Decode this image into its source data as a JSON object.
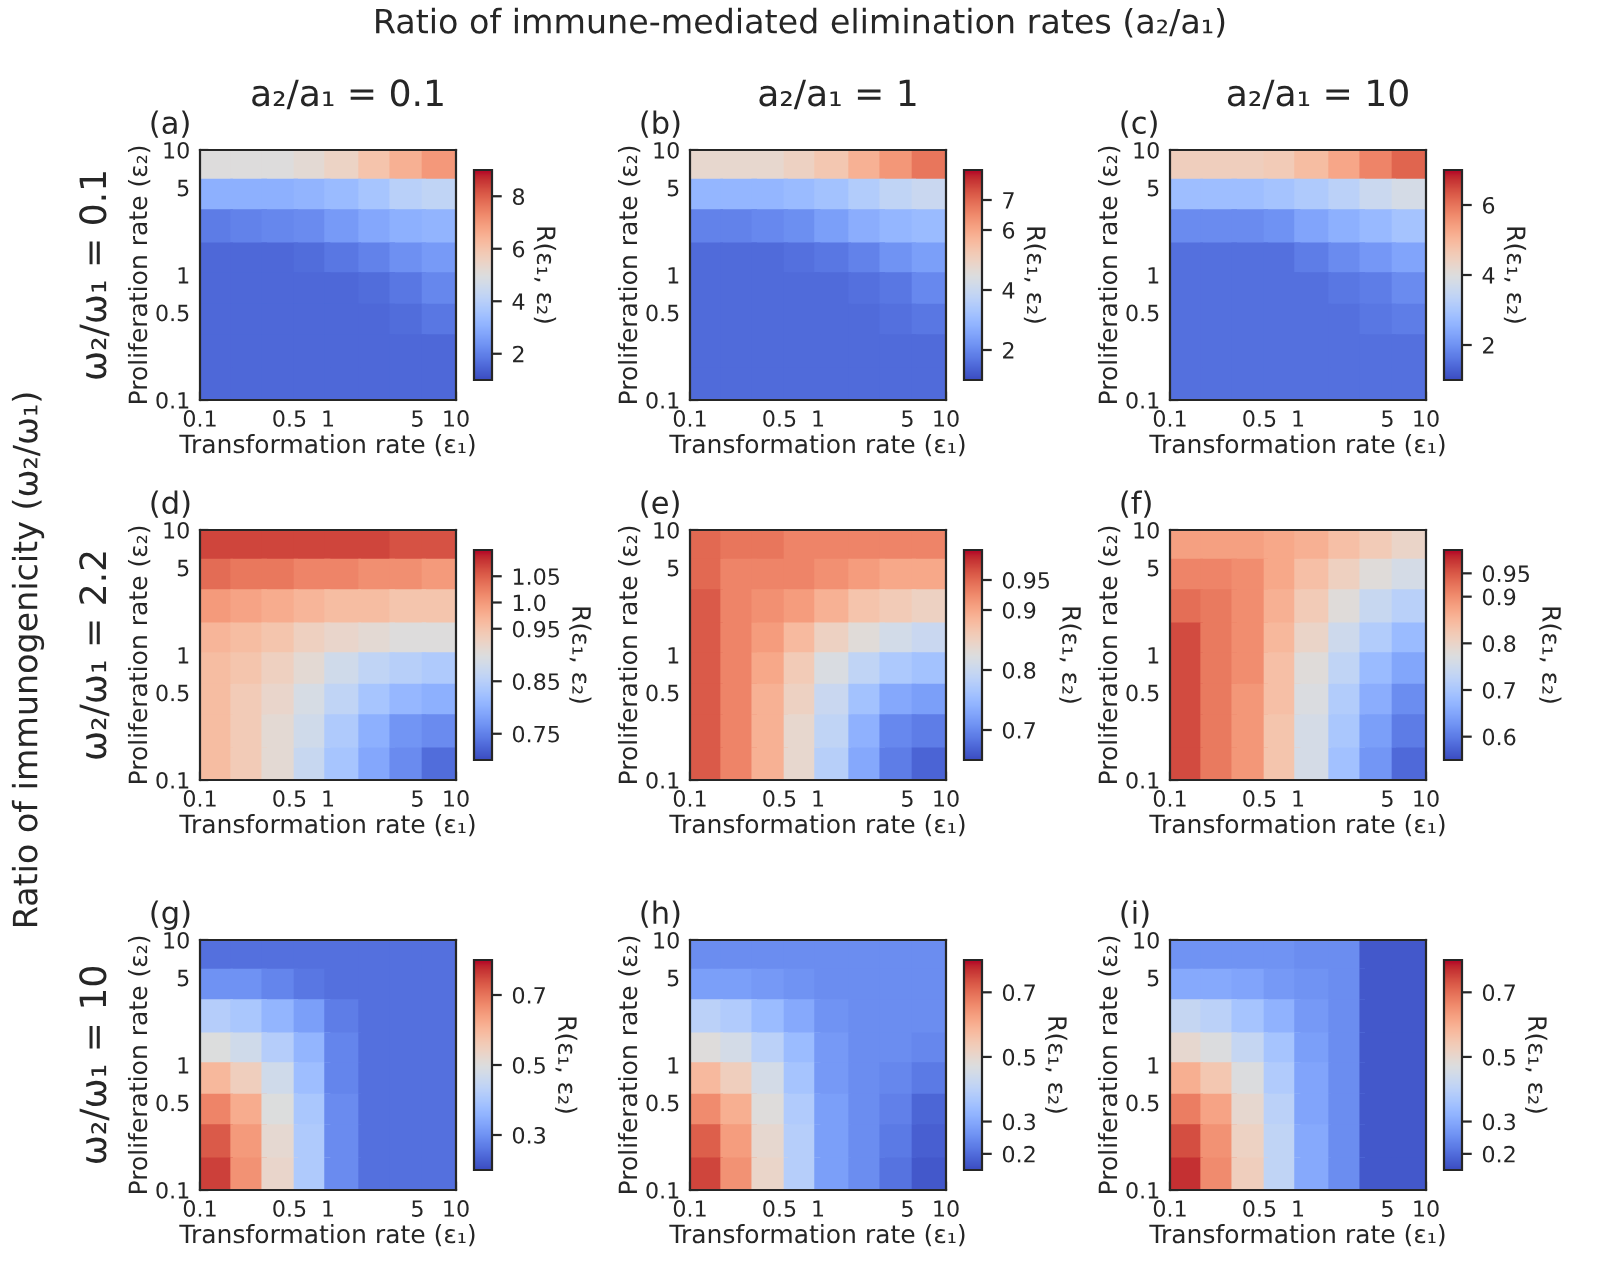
{
  "chart_data": [
    {
      "type": "scatter",
      "marker": "square",
      "title": "(a)",
      "subtitle": "a₂/a₁ = 0.1",
      "annotations": [
        "Ratio of immune-mediated elimination rates (a₂/a₁)",
        "Ratio of immunogenicity (ω₂/ω₁)",
        "ω₂/ω₁ = 0.1"
      ],
      "xlabel": "Transformation rate (ε₁)",
      "ylabel": "Proliferation rate (ε₂)",
      "clabel": "R(ε₁, ε₂)",
      "log": "xy",
      "xlim": [
        0.1,
        10
      ],
      "ylim": [
        0.1,
        10
      ],
      "xticks": [
        0.1,
        0.5,
        1,
        5,
        10
      ],
      "yticks": [
        0.1,
        0.5,
        1,
        5,
        10
      ],
      "clim": [
        1,
        9
      ],
      "cticks": [
        2,
        4,
        6,
        8
      ],
      "x": [
        0.13,
        0.24,
        0.42,
        0.75,
        1.3,
        2.4,
        4.2,
        7.5,
        0.13,
        0.24,
        0.42,
        0.75,
        1.3,
        2.4,
        4.2,
        7.5,
        0.13,
        0.24,
        0.42,
        0.75,
        1.3,
        2.4,
        4.2,
        7.5,
        0.13,
        0.24,
        0.42,
        0.75,
        1.3,
        2.4,
        4.2,
        7.5,
        0.13,
        0.24,
        0.42,
        0.75,
        1.3,
        2.4,
        4.2,
        7.5,
        0.13,
        0.24,
        0.42,
        0.75,
        1.3,
        2.4,
        4.2,
        7.5,
        0.13,
        0.24,
        0.42,
        0.75,
        1.3,
        2.4,
        4.2,
        7.5,
        0.13,
        0.24,
        0.42,
        0.75,
        1.3,
        2.4,
        4.2,
        7.5
      ],
      "values": [
        7.5,
        7.5,
        7.5,
        7.5,
        7.5,
        7.5,
        7.5,
        7.5,
        4.2,
        4.2,
        4.2,
        4.2,
        4.2,
        4.2,
        4.2,
        4.2,
        2.4,
        2.4,
        2.4,
        2.4,
        2.4,
        2.4,
        2.4,
        2.4,
        1.3,
        1.3,
        1.3,
        1.3,
        1.3,
        1.3,
        1.3,
        1.3,
        0.75,
        0.75,
        0.75,
        0.75,
        0.75,
        0.75,
        0.75,
        0.75,
        0.42,
        0.42,
        0.42,
        0.42,
        0.42,
        0.42,
        0.42,
        0.42,
        0.24,
        0.24,
        0.24,
        0.24,
        0.24,
        0.24,
        0.24,
        0.24,
        0.13,
        0.13,
        0.13,
        0.13,
        0.13,
        0.13,
        0.13,
        0.13
      ],
      "cvalues": [
        5,
        5,
        5,
        5.2,
        5.5,
        6,
        6.5,
        7,
        3,
        3,
        3,
        3.1,
        3.3,
        3.6,
        4,
        4.2,
        1.9,
        2,
        2.1,
        2.2,
        2.5,
        2.8,
        3,
        3.1,
        1.5,
        1.5,
        1.5,
        1.6,
        1.8,
        2,
        2.3,
        2.5,
        1.5,
        1.5,
        1.5,
        1.5,
        1.5,
        1.6,
        1.8,
        2.1,
        1.5,
        1.5,
        1.5,
        1.5,
        1.5,
        1.5,
        1.6,
        1.8,
        1.5,
        1.5,
        1.5,
        1.5,
        1.5,
        1.5,
        1.5,
        1.5,
        1.5,
        1.5,
        1.5,
        1.5,
        1.5,
        1.5,
        1.5,
        1.5
      ]
    },
    {
      "type": "scatter",
      "marker": "square",
      "title": "(b)",
      "subtitle": "a₂/a₁ = 1",
      "xlabel": "Transformation rate (ε₁)",
      "ylabel": "Proliferation rate (ε₂)",
      "clabel": "R(ε₁, ε₂)",
      "log": "xy",
      "xlim": [
        0.1,
        10
      ],
      "ylim": [
        0.1,
        10
      ],
      "xticks": [
        0.1,
        0.5,
        1,
        5,
        10
      ],
      "yticks": [
        0.1,
        0.5,
        1,
        5,
        10
      ],
      "clim": [
        1,
        8
      ],
      "cticks": [
        2,
        4,
        6,
        7
      ],
      "x": [
        0.13,
        0.24,
        0.42,
        0.75,
        1.3,
        2.4,
        4.2,
        7.5,
        0.13,
        0.24,
        0.42,
        0.75,
        1.3,
        2.4,
        4.2,
        7.5,
        0.13,
        0.24,
        0.42,
        0.75,
        1.3,
        2.4,
        4.2,
        7.5,
        0.13,
        0.24,
        0.42,
        0.75,
        1.3,
        2.4,
        4.2,
        7.5,
        0.13,
        0.24,
        0.42,
        0.75,
        1.3,
        2.4,
        4.2,
        7.5,
        0.13,
        0.24,
        0.42,
        0.75,
        1.3,
        2.4,
        4.2,
        7.5,
        0.13,
        0.24,
        0.42,
        0.75,
        1.3,
        2.4,
        4.2,
        7.5,
        0.13,
        0.24,
        0.42,
        0.75,
        1.3,
        2.4,
        4.2,
        7.5
      ],
      "values": [
        7.5,
        7.5,
        7.5,
        7.5,
        7.5,
        7.5,
        7.5,
        7.5,
        4.2,
        4.2,
        4.2,
        4.2,
        4.2,
        4.2,
        4.2,
        4.2,
        2.4,
        2.4,
        2.4,
        2.4,
        2.4,
        2.4,
        2.4,
        2.4,
        1.3,
        1.3,
        1.3,
        1.3,
        1.3,
        1.3,
        1.3,
        1.3,
        0.75,
        0.75,
        0.75,
        0.75,
        0.75,
        0.75,
        0.75,
        0.75,
        0.42,
        0.42,
        0.42,
        0.42,
        0.42,
        0.42,
        0.42,
        0.42,
        0.24,
        0.24,
        0.24,
        0.24,
        0.24,
        0.24,
        0.24,
        0.24,
        0.13,
        0.13,
        0.13,
        0.13,
        0.13,
        0.13,
        0.13,
        0.13
      ],
      "cvalues": [
        4.8,
        4.8,
        4.8,
        5,
        5.3,
        5.8,
        6.3,
        6.8,
        2.9,
        2.9,
        2.9,
        3,
        3.2,
        3.5,
        3.8,
        4,
        1.9,
        1.9,
        2,
        2.1,
        2.4,
        2.7,
        2.9,
        3,
        1.5,
        1.5,
        1.5,
        1.6,
        1.7,
        1.9,
        2.2,
        2.4,
        1.5,
        1.5,
        1.5,
        1.5,
        1.5,
        1.6,
        1.7,
        2,
        1.5,
        1.5,
        1.5,
        1.5,
        1.5,
        1.5,
        1.6,
        1.7,
        1.5,
        1.5,
        1.5,
        1.5,
        1.5,
        1.5,
        1.5,
        1.5,
        1.5,
        1.5,
        1.5,
        1.5,
        1.5,
        1.5,
        1.5,
        1.5
      ]
    },
    {
      "type": "scatter",
      "marker": "square",
      "title": "(c)",
      "subtitle": "a₂/a₁ = 10",
      "xlabel": "Transformation rate (ε₁)",
      "ylabel": "Proliferation rate (ε₂)",
      "clabel": "R(ε₁, ε₂)",
      "log": "xy",
      "xlim": [
        0.1,
        10
      ],
      "ylim": [
        0.1,
        10
      ],
      "xticks": [
        0.1,
        0.5,
        1,
        5,
        10
      ],
      "yticks": [
        0.1,
        0.5,
        1,
        5,
        10
      ],
      "clim": [
        1,
        7
      ],
      "cticks": [
        2,
        4,
        6
      ],
      "x": [
        0.13,
        0.24,
        0.42,
        0.75,
        1.3,
        2.4,
        4.2,
        7.5,
        0.13,
        0.24,
        0.42,
        0.75,
        1.3,
        2.4,
        4.2,
        7.5,
        0.13,
        0.24,
        0.42,
        0.75,
        1.3,
        2.4,
        4.2,
        7.5,
        0.13,
        0.24,
        0.42,
        0.75,
        1.3,
        2.4,
        4.2,
        7.5,
        0.13,
        0.24,
        0.42,
        0.75,
        1.3,
        2.4,
        4.2,
        7.5,
        0.13,
        0.24,
        0.42,
        0.75,
        1.3,
        2.4,
        4.2,
        7.5,
        0.13,
        0.24,
        0.42,
        0.75,
        1.3,
        2.4,
        4.2,
        7.5,
        0.13,
        0.24,
        0.42,
        0.75,
        1.3,
        2.4,
        4.2,
        7.5
      ],
      "values": [
        7.5,
        7.5,
        7.5,
        7.5,
        7.5,
        7.5,
        7.5,
        7.5,
        4.2,
        4.2,
        4.2,
        4.2,
        4.2,
        4.2,
        4.2,
        4.2,
        2.4,
        2.4,
        2.4,
        2.4,
        2.4,
        2.4,
        2.4,
        2.4,
        1.3,
        1.3,
        1.3,
        1.3,
        1.3,
        1.3,
        1.3,
        1.3,
        0.75,
        0.75,
        0.75,
        0.75,
        0.75,
        0.75,
        0.75,
        0.75,
        0.42,
        0.42,
        0.42,
        0.42,
        0.42,
        0.42,
        0.42,
        0.42,
        0.24,
        0.24,
        0.24,
        0.24,
        0.24,
        0.24,
        0.24,
        0.24,
        0.13,
        0.13,
        0.13,
        0.13,
        0.13,
        0.13,
        0.13,
        0.13
      ],
      "cvalues": [
        4.5,
        4.5,
        4.5,
        4.6,
        4.9,
        5.3,
        5.8,
        6.2,
        2.8,
        2.8,
        2.8,
        2.9,
        3.1,
        3.3,
        3.6,
        3.8,
        1.9,
        1.9,
        1.9,
        2,
        2.3,
        2.5,
        2.7,
        2.9,
        1.5,
        1.5,
        1.5,
        1.5,
        1.7,
        1.9,
        2.1,
        2.3,
        1.5,
        1.5,
        1.5,
        1.5,
        1.5,
        1.6,
        1.7,
        1.9,
        1.5,
        1.5,
        1.5,
        1.5,
        1.5,
        1.5,
        1.6,
        1.7,
        1.5,
        1.5,
        1.5,
        1.5,
        1.5,
        1.5,
        1.5,
        1.5,
        1.5,
        1.5,
        1.5,
        1.5,
        1.5,
        1.5,
        1.5,
        1.5
      ]
    },
    {
      "type": "scatter",
      "marker": "square",
      "title": "(d)",
      "annotations": [
        "ω₂/ω₁ = 2.2"
      ],
      "xlabel": "Transformation rate (ε₁)",
      "ylabel": "Proliferation rate (ε₂)",
      "clabel": "R(ε₁, ε₂)",
      "log": "xy",
      "xlim": [
        0.1,
        10
      ],
      "ylim": [
        0.1,
        10
      ],
      "xticks": [
        0.1,
        0.5,
        1,
        5,
        10
      ],
      "yticks": [
        0.1,
        0.5,
        1,
        5,
        10
      ],
      "clim": [
        0.7,
        1.1
      ],
      "cticks": [
        0.75,
        0.85,
        0.95,
        {
          "value": 1.0,
          "label": "1.0"
        },
        1.05
      ],
      "x": [
        0.13,
        0.24,
        0.42,
        0.75,
        1.3,
        2.4,
        4.2,
        7.5,
        0.13,
        0.24,
        0.42,
        0.75,
        1.3,
        2.4,
        4.2,
        7.5,
        0.13,
        0.24,
        0.42,
        0.75,
        1.3,
        2.4,
        4.2,
        7.5,
        0.13,
        0.24,
        0.42,
        0.75,
        1.3,
        2.4,
        4.2,
        7.5,
        0.13,
        0.24,
        0.42,
        0.75,
        1.3,
        2.4,
        4.2,
        7.5,
        0.13,
        0.24,
        0.42,
        0.75,
        1.3,
        2.4,
        4.2,
        7.5,
        0.13,
        0.24,
        0.42,
        0.75,
        1.3,
        2.4,
        4.2,
        7.5,
        0.13,
        0.24,
        0.42,
        0.75,
        1.3,
        2.4,
        4.2,
        7.5
      ],
      "values": [
        7.5,
        7.5,
        7.5,
        7.5,
        7.5,
        7.5,
        7.5,
        7.5,
        4.2,
        4.2,
        4.2,
        4.2,
        4.2,
        4.2,
        4.2,
        4.2,
        2.4,
        2.4,
        2.4,
        2.4,
        2.4,
        2.4,
        2.4,
        2.4,
        1.3,
        1.3,
        1.3,
        1.3,
        1.3,
        1.3,
        1.3,
        1.3,
        0.75,
        0.75,
        0.75,
        0.75,
        0.75,
        0.75,
        0.75,
        0.75,
        0.42,
        0.42,
        0.42,
        0.42,
        0.42,
        0.42,
        0.42,
        0.42,
        0.24,
        0.24,
        0.24,
        0.24,
        0.24,
        0.24,
        0.24,
        0.24,
        0.13,
        0.13,
        0.13,
        0.13,
        0.13,
        0.13,
        0.13,
        0.13
      ],
      "cvalues": [
        1.07,
        1.07,
        1.07,
        1.07,
        1.07,
        1.07,
        1.06,
        1.06,
        1.04,
        1.03,
        1.03,
        1.02,
        1.02,
        1.01,
        1.01,
        1.0,
        1.0,
        0.99,
        0.98,
        0.97,
        0.96,
        0.96,
        0.95,
        0.95,
        0.97,
        0.96,
        0.95,
        0.93,
        0.92,
        0.91,
        0.9,
        0.9,
        0.96,
        0.95,
        0.93,
        0.91,
        0.88,
        0.86,
        0.85,
        0.84,
        0.96,
        0.94,
        0.92,
        0.89,
        0.86,
        0.83,
        0.81,
        0.8,
        0.96,
        0.94,
        0.91,
        0.88,
        0.84,
        0.8,
        0.77,
        0.76,
        0.96,
        0.94,
        0.91,
        0.87,
        0.83,
        0.79,
        0.76,
        0.73
      ]
    },
    {
      "type": "scatter",
      "marker": "square",
      "title": "(e)",
      "xlabel": "Transformation rate (ε₁)",
      "ylabel": "Proliferation rate (ε₂)",
      "clabel": "R(ε₁, ε₂)",
      "log": "xy",
      "xlim": [
        0.1,
        10
      ],
      "ylim": [
        0.1,
        10
      ],
      "xticks": [
        0.1,
        0.5,
        1,
        5,
        10
      ],
      "yticks": [
        0.1,
        0.5,
        1,
        5,
        10
      ],
      "clim": [
        0.65,
        1.0
      ],
      "cticks": [
        0.7,
        0.8,
        0.9,
        0.95
      ],
      "x": [
        0.13,
        0.24,
        0.42,
        0.75,
        1.3,
        2.4,
        4.2,
        7.5,
        0.13,
        0.24,
        0.42,
        0.75,
        1.3,
        2.4,
        4.2,
        7.5,
        0.13,
        0.24,
        0.42,
        0.75,
        1.3,
        2.4,
        4.2,
        7.5,
        0.13,
        0.24,
        0.42,
        0.75,
        1.3,
        2.4,
        4.2,
        7.5,
        0.13,
        0.24,
        0.42,
        0.75,
        1.3,
        2.4,
        4.2,
        7.5,
        0.13,
        0.24,
        0.42,
        0.75,
        1.3,
        2.4,
        4.2,
        7.5,
        0.13,
        0.24,
        0.42,
        0.75,
        1.3,
        2.4,
        4.2,
        7.5,
        0.13,
        0.24,
        0.42,
        0.75,
        1.3,
        2.4,
        4.2,
        7.5
      ],
      "values": [
        7.5,
        7.5,
        7.5,
        7.5,
        7.5,
        7.5,
        7.5,
        7.5,
        4.2,
        4.2,
        4.2,
        4.2,
        4.2,
        4.2,
        4.2,
        4.2,
        2.4,
        2.4,
        2.4,
        2.4,
        2.4,
        2.4,
        2.4,
        2.4,
        1.3,
        1.3,
        1.3,
        1.3,
        1.3,
        1.3,
        1.3,
        1.3,
        0.75,
        0.75,
        0.75,
        0.75,
        0.75,
        0.75,
        0.75,
        0.75,
        0.42,
        0.42,
        0.42,
        0.42,
        0.42,
        0.42,
        0.42,
        0.42,
        0.24,
        0.24,
        0.24,
        0.24,
        0.24,
        0.24,
        0.24,
        0.24,
        0.13,
        0.13,
        0.13,
        0.13,
        0.13,
        0.13,
        0.13,
        0.13
      ],
      "cvalues": [
        0.95,
        0.94,
        0.94,
        0.93,
        0.93,
        0.93,
        0.93,
        0.93,
        0.95,
        0.93,
        0.93,
        0.93,
        0.92,
        0.91,
        0.9,
        0.9,
        0.96,
        0.93,
        0.92,
        0.91,
        0.89,
        0.87,
        0.86,
        0.85,
        0.96,
        0.93,
        0.91,
        0.88,
        0.85,
        0.83,
        0.81,
        0.8,
        0.96,
        0.93,
        0.9,
        0.86,
        0.82,
        0.79,
        0.77,
        0.76,
        0.96,
        0.93,
        0.89,
        0.85,
        0.8,
        0.76,
        0.73,
        0.72,
        0.96,
        0.93,
        0.89,
        0.84,
        0.79,
        0.74,
        0.7,
        0.69,
        0.96,
        0.93,
        0.89,
        0.84,
        0.78,
        0.73,
        0.69,
        0.67
      ]
    },
    {
      "type": "scatter",
      "marker": "square",
      "title": "(f)",
      "xlabel": "Transformation rate (ε₁)",
      "ylabel": "Proliferation rate (ε₂)",
      "clabel": "R(ε₁, ε₂)",
      "log": "xy",
      "xlim": [
        0.1,
        10
      ],
      "ylim": [
        0.1,
        10
      ],
      "xticks": [
        0.1,
        0.5,
        1,
        5,
        10
      ],
      "yticks": [
        0.1,
        0.5,
        1,
        5,
        10
      ],
      "clim": [
        0.55,
        1.0
      ],
      "cticks": [
        0.6,
        0.7,
        0.8,
        0.9,
        0.95
      ],
      "x": [
        0.13,
        0.24,
        0.42,
        0.75,
        1.3,
        2.4,
        4.2,
        7.5,
        0.13,
        0.24,
        0.42,
        0.75,
        1.3,
        2.4,
        4.2,
        7.5,
        0.13,
        0.24,
        0.42,
        0.75,
        1.3,
        2.4,
        4.2,
        7.5,
        0.13,
        0.24,
        0.42,
        0.75,
        1.3,
        2.4,
        4.2,
        7.5,
        0.13,
        0.24,
        0.42,
        0.75,
        1.3,
        2.4,
        4.2,
        7.5,
        0.13,
        0.24,
        0.42,
        0.75,
        1.3,
        2.4,
        4.2,
        7.5,
        0.13,
        0.24,
        0.42,
        0.75,
        1.3,
        2.4,
        4.2,
        7.5,
        0.13,
        0.24,
        0.42,
        0.75,
        1.3,
        2.4,
        4.2,
        7.5
      ],
      "values": [
        7.5,
        7.5,
        7.5,
        7.5,
        7.5,
        7.5,
        7.5,
        7.5,
        4.2,
        4.2,
        4.2,
        4.2,
        4.2,
        4.2,
        4.2,
        4.2,
        2.4,
        2.4,
        2.4,
        2.4,
        2.4,
        2.4,
        2.4,
        2.4,
        1.3,
        1.3,
        1.3,
        1.3,
        1.3,
        1.3,
        1.3,
        1.3,
        0.75,
        0.75,
        0.75,
        0.75,
        0.75,
        0.75,
        0.75,
        0.75,
        0.42,
        0.42,
        0.42,
        0.42,
        0.42,
        0.42,
        0.42,
        0.42,
        0.24,
        0.24,
        0.24,
        0.24,
        0.24,
        0.24,
        0.24,
        0.24,
        0.13,
        0.13,
        0.13,
        0.13,
        0.13,
        0.13,
        0.13,
        0.13
      ],
      "cvalues": [
        0.88,
        0.88,
        0.88,
        0.87,
        0.86,
        0.84,
        0.82,
        0.8,
        0.91,
        0.91,
        0.9,
        0.87,
        0.84,
        0.81,
        0.78,
        0.76,
        0.93,
        0.92,
        0.9,
        0.86,
        0.82,
        0.78,
        0.74,
        0.72,
        0.96,
        0.92,
        0.9,
        0.85,
        0.8,
        0.75,
        0.71,
        0.68,
        0.96,
        0.92,
        0.9,
        0.84,
        0.78,
        0.73,
        0.68,
        0.65,
        0.96,
        0.92,
        0.89,
        0.84,
        0.77,
        0.71,
        0.66,
        0.62,
        0.96,
        0.92,
        0.89,
        0.83,
        0.76,
        0.7,
        0.64,
        0.6,
        0.96,
        0.92,
        0.89,
        0.83,
        0.76,
        0.69,
        0.63,
        0.58
      ]
    },
    {
      "type": "scatter",
      "marker": "square",
      "title": "(g)",
      "annotations": [
        "ω₂/ω₁ = 10"
      ],
      "xlabel": "Transformation rate (ε₁)",
      "ylabel": "Proliferation rate (ε₂)",
      "clabel": "R(ε₁, ε₂)",
      "log": "xy",
      "xlim": [
        0.1,
        10
      ],
      "ylim": [
        0.1,
        10
      ],
      "xticks": [
        0.1,
        0.5,
        1,
        5,
        10
      ],
      "yticks": [
        0.1,
        0.5,
        1,
        5,
        10
      ],
      "clim": [
        0.2,
        0.8
      ],
      "cticks": [
        0.3,
        0.5,
        0.7
      ],
      "x": [
        0.13,
        0.24,
        0.42,
        0.75,
        1.3,
        2.4,
        4.2,
        7.5,
        0.13,
        0.24,
        0.42,
        0.75,
        1.3,
        2.4,
        4.2,
        7.5,
        0.13,
        0.24,
        0.42,
        0.75,
        1.3,
        2.4,
        4.2,
        7.5,
        0.13,
        0.24,
        0.42,
        0.75,
        1.3,
        2.4,
        4.2,
        7.5,
        0.13,
        0.24,
        0.42,
        0.75,
        1.3,
        2.4,
        4.2,
        7.5,
        0.13,
        0.24,
        0.42,
        0.75,
        1.3,
        2.4,
        4.2,
        7.5,
        0.13,
        0.24,
        0.42,
        0.75,
        1.3,
        2.4,
        4.2,
        7.5,
        0.13,
        0.24,
        0.42,
        0.75,
        1.3,
        2.4,
        4.2,
        7.5
      ],
      "values": [
        7.5,
        7.5,
        7.5,
        7.5,
        7.5,
        7.5,
        7.5,
        7.5,
        4.2,
        4.2,
        4.2,
        4.2,
        4.2,
        4.2,
        4.2,
        4.2,
        2.4,
        2.4,
        2.4,
        2.4,
        2.4,
        2.4,
        2.4,
        2.4,
        1.3,
        1.3,
        1.3,
        1.3,
        1.3,
        1.3,
        1.3,
        1.3,
        0.75,
        0.75,
        0.75,
        0.75,
        0.75,
        0.75,
        0.75,
        0.75,
        0.42,
        0.42,
        0.42,
        0.42,
        0.42,
        0.42,
        0.42,
        0.42,
        0.24,
        0.24,
        0.24,
        0.24,
        0.24,
        0.24,
        0.24,
        0.24,
        0.13,
        0.13,
        0.13,
        0.13,
        0.13,
        0.13,
        0.13,
        0.13
      ],
      "cvalues": [
        0.25,
        0.25,
        0.25,
        0.25,
        0.25,
        0.25,
        0.25,
        0.25,
        0.3,
        0.3,
        0.28,
        0.26,
        0.25,
        0.25,
        0.25,
        0.25,
        0.42,
        0.4,
        0.36,
        0.32,
        0.27,
        0.25,
        0.25,
        0.25,
        0.5,
        0.47,
        0.42,
        0.36,
        0.28,
        0.25,
        0.25,
        0.25,
        0.6,
        0.55,
        0.47,
        0.38,
        0.28,
        0.25,
        0.25,
        0.25,
        0.68,
        0.62,
        0.5,
        0.4,
        0.29,
        0.25,
        0.25,
        0.25,
        0.73,
        0.65,
        0.52,
        0.41,
        0.29,
        0.25,
        0.25,
        0.25,
        0.76,
        0.66,
        0.53,
        0.41,
        0.29,
        0.25,
        0.25,
        0.25
      ]
    },
    {
      "type": "scatter",
      "marker": "square",
      "title": "(h)",
      "xlabel": "Transformation rate (ε₁)",
      "ylabel": "Proliferation rate (ε₂)",
      "clabel": "R(ε₁, ε₂)",
      "log": "xy",
      "xlim": [
        0.1,
        10
      ],
      "ylim": [
        0.1,
        10
      ],
      "xticks": [
        0.1,
        0.5,
        1,
        5,
        10
      ],
      "yticks": [
        0.1,
        0.5,
        1,
        5,
        10
      ],
      "clim": [
        0.15,
        0.8
      ],
      "cticks": [
        0.2,
        0.3,
        0.5,
        0.7
      ],
      "x": [
        0.13,
        0.24,
        0.42,
        0.75,
        1.3,
        2.4,
        4.2,
        7.5,
        0.13,
        0.24,
        0.42,
        0.75,
        1.3,
        2.4,
        4.2,
        7.5,
        0.13,
        0.24,
        0.42,
        0.75,
        1.3,
        2.4,
        4.2,
        7.5,
        0.13,
        0.24,
        0.42,
        0.75,
        1.3,
        2.4,
        4.2,
        7.5,
        0.13,
        0.24,
        0.42,
        0.75,
        1.3,
        2.4,
        4.2,
        7.5,
        0.13,
        0.24,
        0.42,
        0.75,
        1.3,
        2.4,
        4.2,
        7.5,
        0.13,
        0.24,
        0.42,
        0.75,
        1.3,
        2.4,
        4.2,
        7.5,
        0.13,
        0.24,
        0.42,
        0.75,
        1.3,
        2.4,
        4.2,
        7.5
      ],
      "values": [
        7.5,
        7.5,
        7.5,
        7.5,
        7.5,
        7.5,
        7.5,
        7.5,
        4.2,
        4.2,
        4.2,
        4.2,
        4.2,
        4.2,
        4.2,
        4.2,
        2.4,
        2.4,
        2.4,
        2.4,
        2.4,
        2.4,
        2.4,
        2.4,
        1.3,
        1.3,
        1.3,
        1.3,
        1.3,
        1.3,
        1.3,
        1.3,
        0.75,
        0.75,
        0.75,
        0.75,
        0.75,
        0.75,
        0.75,
        0.75,
        0.42,
        0.42,
        0.42,
        0.42,
        0.42,
        0.42,
        0.42,
        0.42,
        0.24,
        0.24,
        0.24,
        0.24,
        0.24,
        0.24,
        0.24,
        0.24,
        0.13,
        0.13,
        0.13,
        0.13,
        0.13,
        0.13,
        0.13,
        0.13
      ],
      "cvalues": [
        0.25,
        0.25,
        0.25,
        0.25,
        0.25,
        0.25,
        0.25,
        0.25,
        0.28,
        0.28,
        0.27,
        0.26,
        0.25,
        0.25,
        0.25,
        0.25,
        0.4,
        0.38,
        0.34,
        0.3,
        0.26,
        0.25,
        0.25,
        0.25,
        0.48,
        0.45,
        0.4,
        0.34,
        0.27,
        0.25,
        0.25,
        0.24,
        0.58,
        0.53,
        0.45,
        0.36,
        0.27,
        0.25,
        0.24,
        0.22,
        0.66,
        0.6,
        0.48,
        0.38,
        0.28,
        0.25,
        0.23,
        0.19,
        0.72,
        0.63,
        0.5,
        0.39,
        0.28,
        0.25,
        0.22,
        0.18,
        0.75,
        0.65,
        0.51,
        0.39,
        0.28,
        0.25,
        0.21,
        0.17
      ]
    },
    {
      "type": "scatter",
      "marker": "square",
      "title": "(i)",
      "xlabel": "Transformation rate (ε₁)",
      "ylabel": "Proliferation rate (ε₂)",
      "clabel": "R(ε₁, ε₂)",
      "log": "xy",
      "xlim": [
        0.1,
        10
      ],
      "ylim": [
        0.1,
        10
      ],
      "xticks": [
        0.1,
        0.5,
        1,
        5,
        10
      ],
      "yticks": [
        0.1,
        0.5,
        1,
        5,
        10
      ],
      "clim": [
        0.15,
        0.8
      ],
      "cticks": [
        0.2,
        0.3,
        0.5,
        0.7
      ],
      "x": [
        0.13,
        0.24,
        0.42,
        0.75,
        1.3,
        2.4,
        4.2,
        7.5,
        0.13,
        0.24,
        0.42,
        0.75,
        1.3,
        2.4,
        4.2,
        7.5,
        0.13,
        0.24,
        0.42,
        0.75,
        1.3,
        2.4,
        4.2,
        7.5,
        0.13,
        0.24,
        0.42,
        0.75,
        1.3,
        2.4,
        4.2,
        7.5,
        0.13,
        0.24,
        0.42,
        0.75,
        1.3,
        2.4,
        4.2,
        7.5,
        0.13,
        0.24,
        0.42,
        0.75,
        1.3,
        2.4,
        4.2,
        7.5,
        0.13,
        0.24,
        0.42,
        0.75,
        1.3,
        2.4,
        4.2,
        7.5,
        0.13,
        0.24,
        0.42,
        0.75,
        1.3,
        2.4,
        4.2,
        7.5
      ],
      "values": [
        7.5,
        7.5,
        7.5,
        7.5,
        7.5,
        7.5,
        7.5,
        7.5,
        4.2,
        4.2,
        4.2,
        4.2,
        4.2,
        4.2,
        4.2,
        4.2,
        2.4,
        2.4,
        2.4,
        2.4,
        2.4,
        2.4,
        2.4,
        2.4,
        1.3,
        1.3,
        1.3,
        1.3,
        1.3,
        1.3,
        1.3,
        1.3,
        0.75,
        0.75,
        0.75,
        0.75,
        0.75,
        0.75,
        0.75,
        0.75,
        0.42,
        0.42,
        0.42,
        0.42,
        0.42,
        0.42,
        0.42,
        0.42,
        0.24,
        0.24,
        0.24,
        0.24,
        0.24,
        0.24,
        0.24,
        0.24,
        0.13,
        0.13,
        0.13,
        0.13,
        0.13,
        0.13,
        0.13,
        0.13
      ],
      "cvalues": [
        0.26,
        0.26,
        0.26,
        0.26,
        0.25,
        0.25,
        0.17,
        0.17,
        0.3,
        0.3,
        0.29,
        0.27,
        0.26,
        0.25,
        0.17,
        0.17,
        0.42,
        0.4,
        0.36,
        0.32,
        0.27,
        0.25,
        0.17,
        0.17,
        0.5,
        0.47,
        0.42,
        0.36,
        0.28,
        0.25,
        0.17,
        0.17,
        0.6,
        0.55,
        0.47,
        0.38,
        0.29,
        0.25,
        0.17,
        0.17,
        0.68,
        0.62,
        0.5,
        0.4,
        0.29,
        0.25,
        0.17,
        0.17,
        0.74,
        0.65,
        0.52,
        0.41,
        0.3,
        0.25,
        0.17,
        0.17,
        0.77,
        0.66,
        0.53,
        0.41,
        0.3,
        0.25,
        0.17,
        0.17
      ]
    }
  ]
}
